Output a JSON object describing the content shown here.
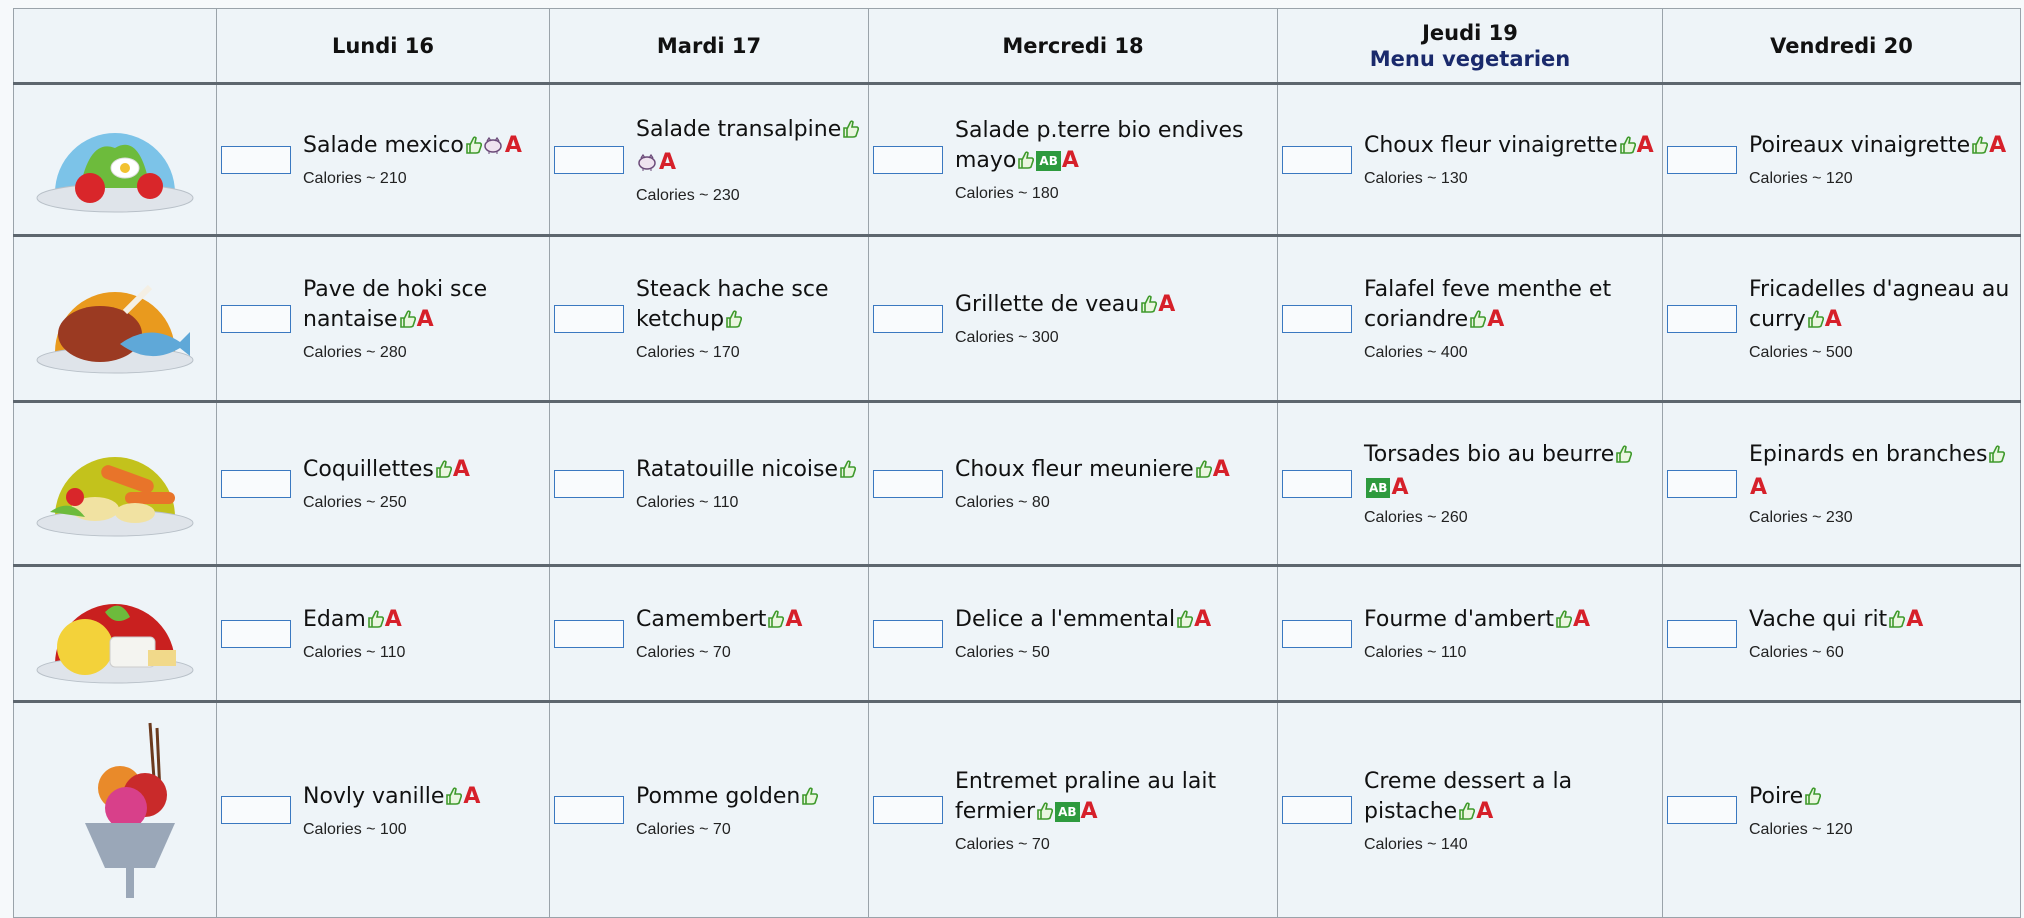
{
  "days": [
    {
      "label": "Lundi 16"
    },
    {
      "label": "Mardi 17"
    },
    {
      "label": "Mercredi 18"
    },
    {
      "label": "Jeudi 19",
      "subtitle": "Menu vegetarien"
    },
    {
      "label": "Vendredi 20"
    }
  ],
  "rows": [
    {
      "cells": [
        {
          "dish": "Salade mexico",
          "labels": [
            "A"
          ],
          "calories": "Calories ~ 210"
        },
        {
          "dish": "Salade transalpine",
          "labels": [
            "A"
          ],
          "calories": "Calories ~ 230"
        },
        {
          "dish": "Salade p.terre bio endives mayo",
          "labels": [
            "AB",
            "A"
          ],
          "calories": "Calories ~ 180"
        },
        {
          "dish": "Choux fleur vinaigrette",
          "labels": [
            "A"
          ],
          "calories": "Calories ~ 130"
        },
        {
          "dish": "Poireaux vinaigrette",
          "labels": [
            "A"
          ],
          "calories": "Calories ~ 120"
        }
      ]
    },
    {
      "cells": [
        {
          "dish": "Pave de hoki sce nantaise",
          "labels": [
            "A"
          ],
          "calories": "Calories ~ 280"
        },
        {
          "dish": "Steack hache sce ketchup",
          "labels": [],
          "calories": "Calories ~ 170"
        },
        {
          "dish": "Grillette de veau",
          "labels": [
            "A"
          ],
          "calories": "Calories ~ 300"
        },
        {
          "dish": "Falafel feve menthe et coriandre",
          "labels": [
            "A"
          ],
          "calories": "Calories ~ 400"
        },
        {
          "dish": "Fricadelles d'agneau au curry",
          "labels": [
            "A"
          ],
          "calories": "Calories ~ 500"
        }
      ]
    },
    {
      "cells": [
        {
          "dish": "Coquillettes",
          "labels": [
            "A"
          ],
          "calories": "Calories ~ 250"
        },
        {
          "dish": "Ratatouille nicoise",
          "labels": [],
          "calories": "Calories ~ 110"
        },
        {
          "dish": "Choux fleur meuniere",
          "labels": [
            "A"
          ],
          "calories": "Calories ~ 80"
        },
        {
          "dish": "Torsades bio au beurre",
          "labels": [
            "AB",
            "A"
          ],
          "calories": "Calories ~ 260"
        },
        {
          "dish": "Epinards en branches",
          "labels": [
            "A"
          ],
          "calories": "Calories ~ 230"
        }
      ]
    },
    {
      "cells": [
        {
          "dish": "Edam",
          "labels": [
            "A"
          ],
          "calories": "Calories ~ 110"
        },
        {
          "dish": "Camembert",
          "labels": [
            "A"
          ],
          "calories": "Calories ~ 70"
        },
        {
          "dish": "Delice a l'emmental",
          "labels": [
            "A"
          ],
          "calories": "Calories ~ 50"
        },
        {
          "dish": "Fourme d'ambert",
          "labels": [
            "A"
          ],
          "calories": "Calories ~ 110"
        },
        {
          "dish": "Vache qui rit",
          "labels": [
            "A"
          ],
          "calories": "Calories ~ 60"
        }
      ]
    },
    {
      "cells": [
        {
          "dish": "Novly vanille",
          "labels": [
            "A"
          ],
          "calories": "Calories ~ 100"
        },
        {
          "dish": "Pomme golden",
          "labels": [],
          "calories": "Calories ~ 70"
        },
        {
          "dish": "Entremet praline au lait fermier",
          "labels": [
            "AB",
            "A"
          ],
          "calories": "Calories ~ 70"
        },
        {
          "dish": "Creme dessert a la pistache",
          "labels": [
            "A"
          ],
          "calories": "Calories ~ 140"
        },
        {
          "dish": "Poire",
          "labels": [],
          "calories": "Calories ~ 120"
        }
      ]
    }
  ]
}
